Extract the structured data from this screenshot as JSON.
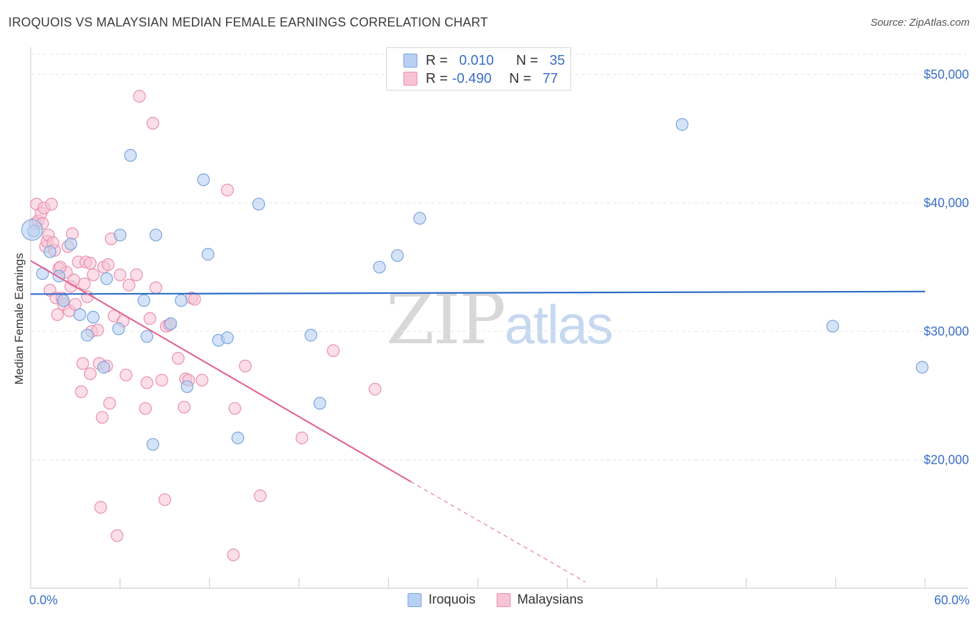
{
  "title": "IROQUOIS VS MALAYSIAN MEDIAN FEMALE EARNINGS CORRELATION CHART",
  "source": "Source: ZipAtlas.com",
  "watermark": {
    "zip": "ZIP",
    "atlas": "atlas"
  },
  "colors": {
    "iroquois_fill": "#b8d0f2",
    "iroquois_stroke": "#7aa3dd",
    "iroquois_line": "#2c6bc7",
    "malaysian_fill": "#f8c3d4",
    "malaysian_stroke": "#e98fae",
    "malaysian_line": "#e06691",
    "value_text": "#3a6ec7",
    "grid": "#e4e4e4"
  },
  "legend_top": {
    "iroquois": {
      "r_label": "R =",
      "r_value": "0.010",
      "n_label": "N =",
      "n_value": "35"
    },
    "malaysians": {
      "r_label": "R =",
      "r_value": "-0.490",
      "n_label": "N =",
      "n_value": "77"
    }
  },
  "legend_bottom": {
    "iroquois": "Iroquois",
    "malaysians": "Malaysians"
  },
  "chart_data": {
    "type": "scatter",
    "title": "IROQUOIS VS MALAYSIAN MEDIAN FEMALE EARNINGS CORRELATION CHART",
    "xlabel": "",
    "ylabel": "Median Female Earnings",
    "xlim": [
      0,
      60
    ],
    "ylim": [
      10000,
      52000
    ],
    "x_tick_labels": {
      "left": "0.0%",
      "right": "60.0%"
    },
    "y_ticks": [
      {
        "value": 20000,
        "label": "$20,000"
      },
      {
        "value": 30000,
        "label": "$30,000"
      },
      {
        "value": 40000,
        "label": "$40,000"
      },
      {
        "value": 50000,
        "label": "$50,000"
      }
    ],
    "grid": true,
    "series": [
      {
        "name": "Iroquois",
        "trend": {
          "x0": 0,
          "y0": 32900,
          "x1": 60,
          "y1": 33100,
          "dashed_from": null
        },
        "points": [
          [
            0.2,
            37800
          ],
          [
            0.8,
            34500
          ],
          [
            1.3,
            36200
          ],
          [
            1.9,
            34300
          ],
          [
            2.7,
            36800
          ],
          [
            2.2,
            32400
          ],
          [
            3.3,
            31300
          ],
          [
            3.8,
            29700
          ],
          [
            4.2,
            31100
          ],
          [
            4.9,
            27200
          ],
          [
            5.1,
            34100
          ],
          [
            5.9,
            30200
          ],
          [
            6.0,
            37500
          ],
          [
            6.7,
            43700
          ],
          [
            7.6,
            32400
          ],
          [
            7.8,
            29600
          ],
          [
            8.2,
            21200
          ],
          [
            8.4,
            37500
          ],
          [
            9.4,
            30600
          ],
          [
            10.1,
            32400
          ],
          [
            10.5,
            25700
          ],
          [
            11.6,
            41800
          ],
          [
            11.9,
            36000
          ],
          [
            12.6,
            29300
          ],
          [
            13.2,
            29500
          ],
          [
            13.9,
            21700
          ],
          [
            15.3,
            39900
          ],
          [
            18.8,
            29700
          ],
          [
            19.4,
            24400
          ],
          [
            23.4,
            35000
          ],
          [
            24.6,
            35900
          ],
          [
            26.1,
            38800
          ],
          [
            43.7,
            46100
          ],
          [
            53.8,
            30400
          ],
          [
            59.8,
            27200
          ]
        ]
      },
      {
        "name": "Malaysians",
        "trend": {
          "x0": 0,
          "y0": 35500,
          "x1": 25.5,
          "y1": 18300,
          "dashed_to_x": 37.2,
          "dashed_to_y": 10500
        },
        "points": [
          [
            0.3,
            38400
          ],
          [
            0.4,
            39900
          ],
          [
            0.5,
            38600
          ],
          [
            0.7,
            39200
          ],
          [
            0.8,
            38400
          ],
          [
            0.9,
            39600
          ],
          [
            1.0,
            36600
          ],
          [
            1.1,
            37000
          ],
          [
            1.2,
            37500
          ],
          [
            1.3,
            33200
          ],
          [
            1.4,
            39900
          ],
          [
            1.6,
            36300
          ],
          [
            1.7,
            32600
          ],
          [
            1.8,
            31300
          ],
          [
            1.9,
            34900
          ],
          [
            2.1,
            32600
          ],
          [
            2.2,
            32100
          ],
          [
            2.4,
            34600
          ],
          [
            2.5,
            36600
          ],
          [
            2.6,
            31600
          ],
          [
            2.7,
            33500
          ],
          [
            2.8,
            37600
          ],
          [
            2.9,
            34000
          ],
          [
            3.0,
            32100
          ],
          [
            3.2,
            35400
          ],
          [
            3.4,
            25300
          ],
          [
            3.5,
            27500
          ],
          [
            3.6,
            33700
          ],
          [
            3.7,
            35400
          ],
          [
            3.8,
            32700
          ],
          [
            4.0,
            35300
          ],
          [
            4.0,
            26700
          ],
          [
            4.1,
            30000
          ],
          [
            4.2,
            34400
          ],
          [
            4.5,
            30100
          ],
          [
            4.6,
            27500
          ],
          [
            4.7,
            16300
          ],
          [
            4.8,
            23300
          ],
          [
            4.9,
            35000
          ],
          [
            5.1,
            27300
          ],
          [
            5.2,
            35200
          ],
          [
            5.3,
            24400
          ],
          [
            5.4,
            37200
          ],
          [
            5.6,
            31200
          ],
          [
            5.8,
            14100
          ],
          [
            6.0,
            34400
          ],
          [
            6.2,
            30800
          ],
          [
            6.4,
            26600
          ],
          [
            6.6,
            33600
          ],
          [
            7.1,
            34400
          ],
          [
            7.3,
            48300
          ],
          [
            7.7,
            24000
          ],
          [
            7.8,
            26000
          ],
          [
            8.0,
            31000
          ],
          [
            8.2,
            46200
          ],
          [
            8.4,
            33400
          ],
          [
            8.8,
            26200
          ],
          [
            9.0,
            16900
          ],
          [
            9.1,
            30400
          ],
          [
            9.3,
            30500
          ],
          [
            9.9,
            27900
          ],
          [
            10.3,
            24100
          ],
          [
            10.4,
            26300
          ],
          [
            10.6,
            26200
          ],
          [
            10.8,
            32600
          ],
          [
            11.0,
            32500
          ],
          [
            11.5,
            26200
          ],
          [
            13.2,
            41000
          ],
          [
            13.6,
            12600
          ],
          [
            13.7,
            24000
          ],
          [
            14.4,
            27300
          ],
          [
            15.4,
            17200
          ],
          [
            18.2,
            21700
          ],
          [
            20.3,
            28500
          ],
          [
            23.1,
            25500
          ],
          [
            1.5,
            36900
          ],
          [
            2.0,
            35000
          ]
        ]
      }
    ]
  }
}
